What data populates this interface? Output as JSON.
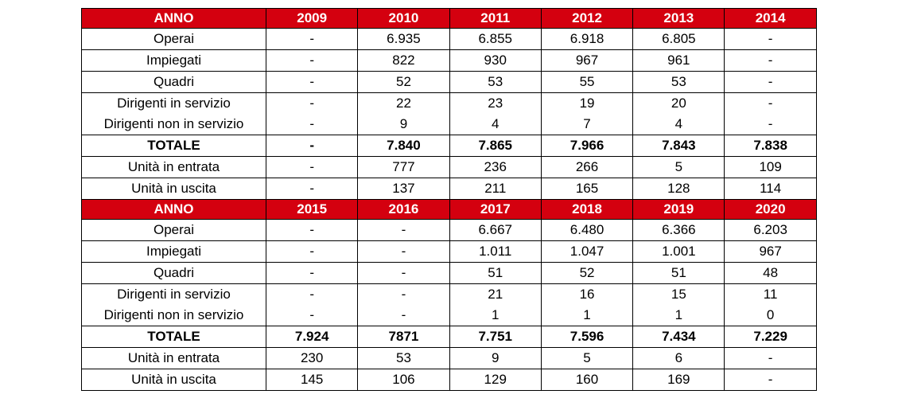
{
  "tables": [
    {
      "header": [
        "ANNO",
        "2009",
        "2010",
        "2011",
        "2012",
        "2013",
        "2014"
      ],
      "rows": [
        {
          "label": "Operai",
          "values": [
            "-",
            "6.935",
            "6.855",
            "6.918",
            "6.805",
            "-"
          ]
        },
        {
          "label": "Impiegati",
          "values": [
            "-",
            "822",
            "930",
            "967",
            "961",
            "-"
          ]
        },
        {
          "label": "Quadri",
          "values": [
            "-",
            "52",
            "53",
            "55",
            "53",
            "-"
          ]
        },
        {
          "label": "Dirigenti in servizio",
          "values": [
            "-",
            "22",
            "23",
            "19",
            "20",
            "-"
          ]
        },
        {
          "label": "Dirigenti non in servizio",
          "values": [
            "-",
            "9",
            "4",
            "7",
            "4",
            "-"
          ]
        },
        {
          "label": "TOTALE",
          "values": [
            "-",
            "7.840",
            "7.865",
            "7.966",
            "7.843",
            "7.838"
          ]
        },
        {
          "label": "Unità in entrata",
          "values": [
            "-",
            "777",
            "236",
            "266",
            "5",
            "109"
          ]
        },
        {
          "label": "Unità in uscita",
          "values": [
            "-",
            "137",
            "211",
            "165",
            "128",
            "114"
          ]
        }
      ]
    },
    {
      "header": [
        "ANNO",
        "2015",
        "2016",
        "2017",
        "2018",
        "2019",
        "2020"
      ],
      "rows": [
        {
          "label": "Operai",
          "values": [
            "-",
            "-",
            "6.667",
            "6.480",
            "6.366",
            "6.203"
          ]
        },
        {
          "label": "Impiegati",
          "values": [
            "-",
            "-",
            "1.011",
            "1.047",
            "1.001",
            "967"
          ]
        },
        {
          "label": "Quadri",
          "values": [
            "-",
            "-",
            "51",
            "52",
            "51",
            "48"
          ]
        },
        {
          "label": "Dirigenti in servizio",
          "values": [
            "-",
            "-",
            "21",
            "16",
            "15",
            "11"
          ]
        },
        {
          "label": "Dirigenti non in servizio",
          "values": [
            "-",
            "-",
            "1",
            "1",
            "1",
            "0"
          ]
        },
        {
          "label": "TOTALE",
          "values": [
            "7.924",
            "7871",
            "7.751",
            "7.596",
            "7.434",
            "7.229"
          ]
        },
        {
          "label": "Unità in entrata",
          "values": [
            "230",
            "53",
            "9",
            "5",
            "6",
            "-"
          ]
        },
        {
          "label": "Unità in uscita",
          "values": [
            "145",
            "106",
            "129",
            "160",
            "169",
            "-"
          ]
        }
      ]
    }
  ]
}
